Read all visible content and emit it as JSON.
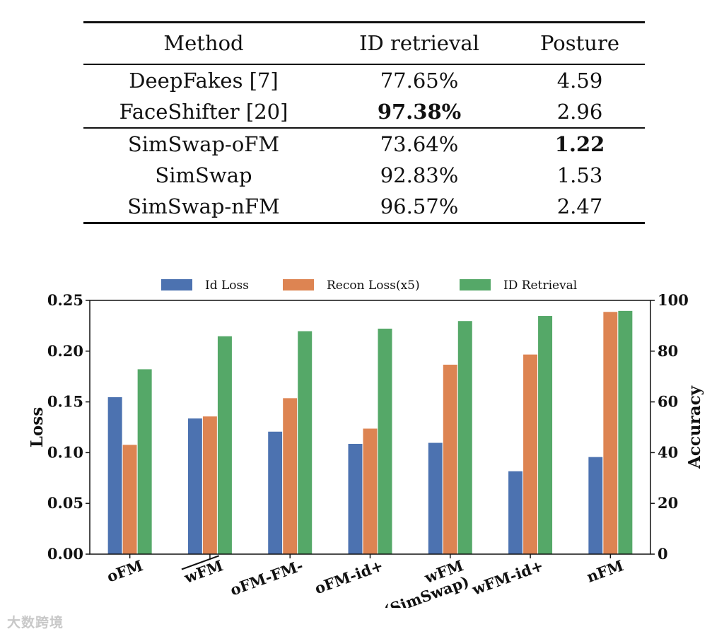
{
  "table": {
    "headers": [
      "Method",
      "ID retrieval",
      "Posture"
    ],
    "group1": [
      {
        "method": "DeepFakes [7]",
        "id": "77.65%",
        "posture": "4.59"
      },
      {
        "method": "FaceShifter [20]",
        "id": "97.38%",
        "posture": "2.96"
      }
    ],
    "group2": [
      {
        "method": "SimSwap-oFM",
        "id": "73.64%",
        "posture": "1.22"
      },
      {
        "method": "SimSwap",
        "id": "92.83%",
        "posture": "1.53"
      },
      {
        "method": "SimSwap-nFM",
        "id": "96.57%",
        "posture": "2.47"
      }
    ]
  },
  "chart_data": {
    "type": "bar",
    "categories": [
      "oFM",
      "wFM",
      "oFM-FM-",
      "oFM-id+",
      "wFM\n(SimSwap)",
      "wFM-id+",
      "nFM"
    ],
    "overline_categories": [
      1
    ],
    "series": [
      {
        "name": "Id Loss",
        "axis": "left",
        "color": "#4c72b0",
        "values": [
          0.155,
          0.134,
          0.121,
          0.109,
          0.11,
          0.082,
          0.096
        ]
      },
      {
        "name": "Recon Loss(x5)",
        "axis": "left",
        "color": "#dd8452",
        "values": [
          0.108,
          0.136,
          0.154,
          0.124,
          0.187,
          0.197,
          0.239
        ]
      },
      {
        "name": "ID Retrieval",
        "axis": "right",
        "color": "#55a868",
        "values": [
          73.0,
          86.0,
          88.0,
          89.0,
          92.0,
          94.0,
          96.0
        ]
      }
    ],
    "ylabel": "Loss",
    "ylabel_right": "Accuracy",
    "ylim": [
      0,
      0.25
    ],
    "ylim_right": [
      0,
      100
    ],
    "yticks": [
      "0.00",
      "0.05",
      "0.10",
      "0.15",
      "0.20",
      "0.25"
    ],
    "yticks_right": [
      "0",
      "20",
      "40",
      "60",
      "80",
      "100"
    ],
    "legend_position": "top"
  },
  "watermark": "大数跨境"
}
